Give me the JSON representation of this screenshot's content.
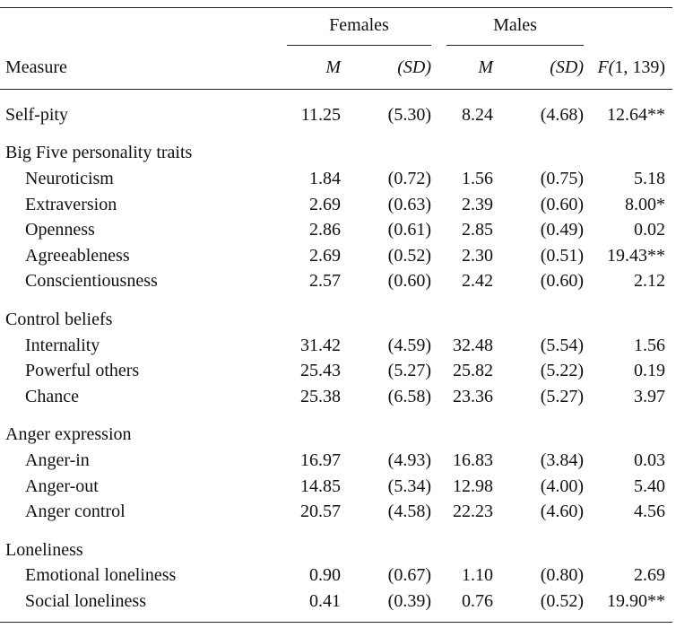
{
  "table": {
    "groups": [
      "Females",
      "Males"
    ],
    "columns": [
      "Measure",
      "M",
      "(SD)",
      "M",
      "(SD)",
      "F(1, 139)"
    ],
    "sections": [
      {
        "rows": [
          [
            "Self-pity",
            "11.25",
            "(5.30)",
            "8.24",
            "(4.68)",
            "12.64**"
          ]
        ]
      },
      {
        "title": "Big Five personality traits",
        "rows": [
          [
            "Neuroticism",
            "1.84",
            "(0.72)",
            "1.56",
            "(0.75)",
            "5.18"
          ],
          [
            "Extraversion",
            "2.69",
            "(0.63)",
            "2.39",
            "(0.60)",
            "8.00*"
          ],
          [
            "Openness",
            "2.86",
            "(0.61)",
            "2.85",
            "(0.49)",
            "0.02"
          ],
          [
            "Agreeableness",
            "2.69",
            "(0.52)",
            "2.30",
            "(0.51)",
            "19.43**"
          ],
          [
            "Conscientiousness",
            "2.57",
            "(0.60)",
            "2.42",
            "(0.60)",
            "2.12"
          ]
        ]
      },
      {
        "title": "Control beliefs",
        "rows": [
          [
            "Internality",
            "31.42",
            "(4.59)",
            "32.48",
            "(5.54)",
            "1.56"
          ],
          [
            "Powerful others",
            "25.43",
            "(5.27)",
            "25.82",
            "(5.22)",
            "0.19"
          ],
          [
            "Chance",
            "25.38",
            "(6.58)",
            "23.36",
            "(5.27)",
            "3.97"
          ]
        ]
      },
      {
        "title": "Anger expression",
        "rows": [
          [
            "Anger-in",
            "16.97",
            "(4.93)",
            "16.83",
            "(3.84)",
            "0.03"
          ],
          [
            "Anger-out",
            "14.85",
            "(5.34)",
            "12.98",
            "(4.00)",
            "5.40"
          ],
          [
            "Anger control",
            "20.57",
            "(4.58)",
            "22.23",
            "(4.60)",
            "4.56"
          ]
        ]
      },
      {
        "title": "Loneliness",
        "rows": [
          [
            "Emotional loneliness",
            "0.90",
            "(0.67)",
            "1.10",
            "(0.80)",
            "2.69"
          ],
          [
            "Social loneliness",
            "0.41",
            "(0.39)",
            "0.76",
            "(0.52)",
            "19.90**"
          ]
        ]
      }
    ]
  }
}
